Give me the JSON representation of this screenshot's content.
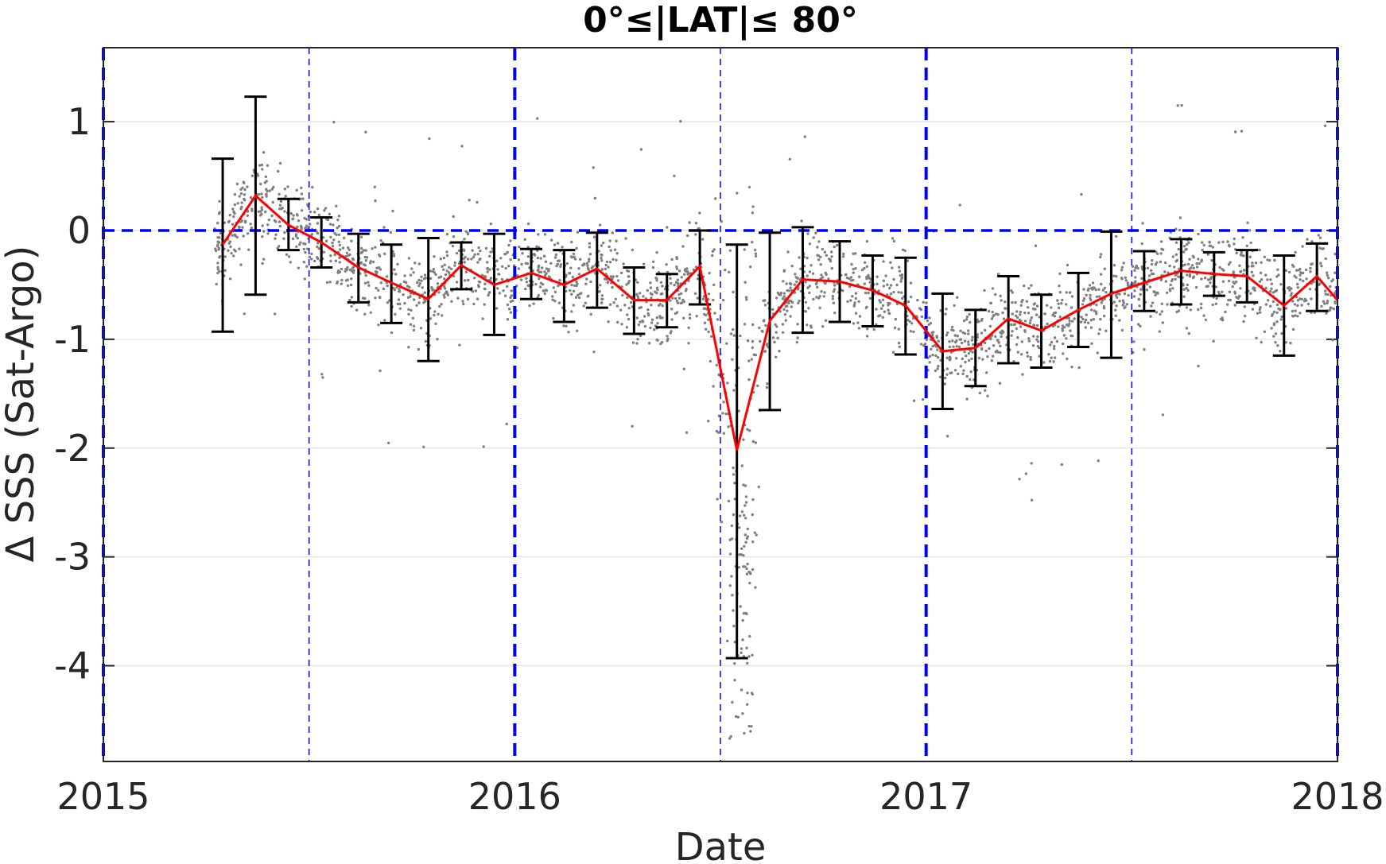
{
  "chart_data": {
    "type": "line",
    "title": "0°≤|LAT|≤ 80°",
    "xlabel": "Date",
    "ylabel": "Δ SSS (Sat-Argo)",
    "xlim": [
      2015.0,
      2018.0
    ],
    "ylim": [
      -4.88,
      1.68
    ],
    "x_ticks": [
      2015,
      2016,
      2017,
      2018
    ],
    "x_tick_labels": [
      "2015",
      "2016",
      "2017",
      "2018"
    ],
    "y_ticks": [
      1,
      0,
      -1,
      -2,
      -3,
      -4
    ],
    "y_tick_labels": [
      "1",
      "0",
      "-1",
      "-2",
      "-3",
      "-4"
    ],
    "grid": true,
    "series": [
      {
        "kind": "mean-with-errorbars",
        "color": "#ff0000",
        "errorbar_color": "#000000",
        "x": [
          2015.29,
          2015.37,
          2015.45,
          2015.53,
          2015.62,
          2015.7,
          2015.79,
          2015.87,
          2015.95,
          2016.04,
          2016.12,
          2016.2,
          2016.29,
          2016.37,
          2016.45,
          2016.54,
          2016.62,
          2016.7,
          2016.79,
          2016.87,
          2016.95,
          2017.04,
          2017.12,
          2017.2,
          2017.28,
          2017.37,
          2017.45,
          2017.53,
          2017.62,
          2017.7,
          2017.78,
          2017.87,
          2017.95,
          2018.0
        ],
        "y": [
          -0.13,
          0.32,
          0.05,
          -0.11,
          -0.34,
          -0.48,
          -0.63,
          -0.32,
          -0.5,
          -0.39,
          -0.5,
          -0.35,
          -0.64,
          -0.64,
          -0.33,
          -2.02,
          -0.83,
          -0.45,
          -0.47,
          -0.55,
          -0.69,
          -1.11,
          -1.08,
          -0.81,
          -0.92,
          -0.73,
          -0.58,
          -0.48,
          -0.37,
          -0.4,
          -0.42,
          -0.69,
          -0.42,
          -0.64
        ],
        "y_low": [
          -0.93,
          -0.59,
          -0.18,
          -0.34,
          -0.66,
          -0.85,
          -1.2,
          -0.54,
          -0.96,
          -0.63,
          -0.84,
          -0.71,
          -0.95,
          -0.89,
          -0.68,
          -3.93,
          -1.65,
          -0.94,
          -0.84,
          -0.88,
          -1.14,
          -1.64,
          -1.43,
          -1.22,
          -1.26,
          -1.07,
          -1.17,
          -0.74,
          -0.68,
          -0.6,
          -0.66,
          -1.15,
          -0.74,
          null
        ],
        "y_high": [
          0.66,
          1.23,
          0.29,
          0.12,
          -0.03,
          -0.13,
          -0.07,
          -0.11,
          -0.03,
          -0.17,
          -0.18,
          -0.02,
          -0.34,
          -0.4,
          0.0,
          -0.13,
          -0.02,
          0.03,
          -0.1,
          -0.23,
          -0.25,
          -0.58,
          -0.73,
          -0.42,
          -0.59,
          -0.39,
          -0.01,
          -0.19,
          -0.08,
          -0.2,
          -0.18,
          -0.23,
          -0.12,
          null
        ]
      },
      {
        "kind": "scatter",
        "color": "#808080",
        "description_of_density": "dense gray dots around the mean line"
      }
    ],
    "reference_lines": {
      "horizontal_zero": {
        "y": 0,
        "color": "#0000ff",
        "style": "dashed"
      },
      "major_year_lines": {
        "x": [
          2015.0,
          2016.0,
          2017.0,
          2018.0
        ],
        "color": "#0000ff",
        "style": "dashed-thick"
      },
      "half_year_lines": {
        "x": [
          2015.5,
          2016.5,
          2017.5
        ],
        "color": "#0000ff",
        "style": "dashed-thin"
      }
    }
  }
}
